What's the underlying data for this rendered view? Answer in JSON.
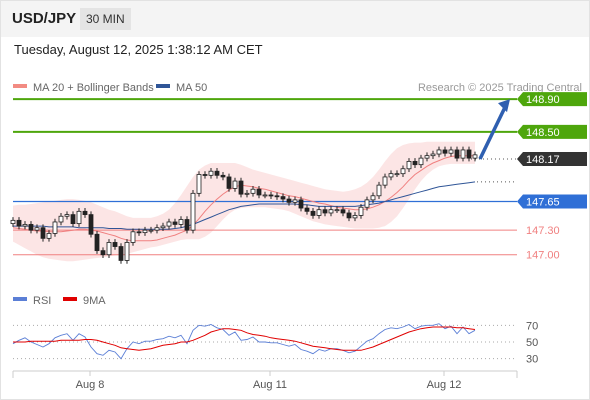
{
  "header": {
    "symbol": "USD/JPY",
    "timeframe": "30 MIN",
    "datetime": "Tuesday, August 12, 2025 1:38:12 AM CET"
  },
  "price_panel": {
    "legend": [
      {
        "label": "MA 20 + Bollinger Bands",
        "color": "#f28b82"
      },
      {
        "label": "MA 50",
        "color": "#2f5597"
      }
    ],
    "watermark": "Research © 2025 Trading Central"
  },
  "rsi_panel": {
    "legend": [
      {
        "label": "RSI",
        "color": "#5b7fd6"
      },
      {
        "label": "9MA",
        "color": "#e00000"
      }
    ]
  },
  "chart_data": [
    {
      "type": "candlestick",
      "ylim": [
        146.85,
        149.0
      ],
      "x_tick_labels": [
        "Aug 8",
        "Aug 11",
        "Aug 12"
      ],
      "x_tick_index": [
        13,
        43,
        72
      ],
      "n_bars": 78,
      "candles_open": [
        147.38,
        147.42,
        147.35,
        147.37,
        147.3,
        147.33,
        147.2,
        147.26,
        147.4,
        147.47,
        147.49,
        147.38,
        147.53,
        147.49,
        147.25,
        147.05,
        147.0,
        147.15,
        147.1,
        146.93,
        147.15,
        147.28,
        147.27,
        147.3,
        147.3,
        147.33,
        147.35,
        147.4,
        147.37,
        147.43,
        147.3,
        147.75,
        147.98,
        147.97,
        148.02,
        147.97,
        147.95,
        147.81,
        147.9,
        147.74,
        147.75,
        147.8,
        147.73,
        147.73,
        147.72,
        147.71,
        147.68,
        147.64,
        147.67,
        147.57,
        147.53,
        147.48,
        147.55,
        147.51,
        147.55,
        147.55,
        147.51,
        147.45,
        147.48,
        147.58,
        147.67,
        147.72,
        147.85,
        147.95,
        147.99,
        147.99,
        148.05,
        148.14,
        148.1,
        148.18,
        148.21,
        148.23,
        148.28,
        148.24,
        148.28,
        148.18,
        148.28,
        148.18
      ],
      "candles_close": [
        147.42,
        147.35,
        147.37,
        147.3,
        147.33,
        147.2,
        147.26,
        147.4,
        147.47,
        147.49,
        147.38,
        147.53,
        147.49,
        147.25,
        147.05,
        147.0,
        147.15,
        147.1,
        146.93,
        147.15,
        147.28,
        147.27,
        147.3,
        147.3,
        147.33,
        147.35,
        147.4,
        147.37,
        147.43,
        147.3,
        147.75,
        147.98,
        147.97,
        148.02,
        147.97,
        147.95,
        147.81,
        147.9,
        147.74,
        147.75,
        147.8,
        147.73,
        147.73,
        147.72,
        147.71,
        147.68,
        147.64,
        147.67,
        147.57,
        147.53,
        147.48,
        147.55,
        147.51,
        147.55,
        147.55,
        147.51,
        147.45,
        147.48,
        147.58,
        147.67,
        147.72,
        147.85,
        147.95,
        147.99,
        147.99,
        148.05,
        148.14,
        148.1,
        148.18,
        148.21,
        148.23,
        148.28,
        148.24,
        148.28,
        148.18,
        148.28,
        148.18,
        148.22
      ],
      "candles_high": [
        147.46,
        147.46,
        147.41,
        147.41,
        147.37,
        147.37,
        147.3,
        147.44,
        147.51,
        147.53,
        147.53,
        147.57,
        147.57,
        147.53,
        147.29,
        147.09,
        147.19,
        147.19,
        147.14,
        147.19,
        147.32,
        147.32,
        147.34,
        147.34,
        147.37,
        147.39,
        147.44,
        147.44,
        147.47,
        147.47,
        147.79,
        148.02,
        148.02,
        148.06,
        148.06,
        148.01,
        147.99,
        147.94,
        147.94,
        147.79,
        147.84,
        147.84,
        147.77,
        147.77,
        147.76,
        147.75,
        147.72,
        147.71,
        147.71,
        147.61,
        147.57,
        147.59,
        147.59,
        147.59,
        147.59,
        147.59,
        147.55,
        147.52,
        147.62,
        147.71,
        147.76,
        147.89,
        147.99,
        148.03,
        148.03,
        148.09,
        148.18,
        148.18,
        148.22,
        148.25,
        148.27,
        148.32,
        148.32,
        148.32,
        148.32,
        148.32,
        148.32,
        148.26
      ],
      "candles_low": [
        147.34,
        147.31,
        147.31,
        147.26,
        147.26,
        147.16,
        147.16,
        147.22,
        147.36,
        147.43,
        147.34,
        147.34,
        147.45,
        147.21,
        147.01,
        146.96,
        146.96,
        147.06,
        146.89,
        146.89,
        147.11,
        147.23,
        147.23,
        147.26,
        147.26,
        147.29,
        147.31,
        147.33,
        147.33,
        147.26,
        147.26,
        147.71,
        147.93,
        147.93,
        147.93,
        147.91,
        147.77,
        147.77,
        147.7,
        147.7,
        147.71,
        147.69,
        147.69,
        147.68,
        147.67,
        147.64,
        147.6,
        147.6,
        147.53,
        147.49,
        147.44,
        147.44,
        147.47,
        147.47,
        147.51,
        147.47,
        147.41,
        147.41,
        147.44,
        147.54,
        147.63,
        147.68,
        147.81,
        147.91,
        147.95,
        147.95,
        148.01,
        148.06,
        148.06,
        148.14,
        148.17,
        148.19,
        148.2,
        148.2,
        148.14,
        148.14,
        148.14,
        148.14
      ],
      "ma20": [
        147.33,
        147.32,
        147.31,
        147.3,
        147.29,
        147.29,
        147.28,
        147.28,
        147.28,
        147.29,
        147.3,
        147.31,
        147.31,
        147.3,
        147.29,
        147.27,
        147.25,
        147.23,
        147.2,
        147.18,
        147.17,
        147.17,
        147.17,
        147.17,
        147.18,
        147.2,
        147.22,
        147.24,
        147.27,
        147.3,
        147.36,
        147.44,
        147.53,
        147.61,
        147.68,
        147.74,
        147.79,
        147.83,
        147.85,
        147.84,
        147.83,
        147.81,
        147.8,
        147.78,
        147.76,
        147.74,
        147.72,
        147.71,
        147.69,
        147.67,
        147.65,
        147.63,
        147.62,
        147.6,
        147.58,
        147.57,
        147.56,
        147.55,
        147.55,
        147.56,
        147.58,
        147.61,
        147.65,
        147.7,
        147.76,
        147.83,
        147.91,
        147.98,
        148.03,
        148.08,
        148.12,
        148.15,
        148.18,
        148.2,
        148.21,
        148.21,
        148.21,
        148.21
      ],
      "ma50": [
        147.35,
        147.35,
        147.35,
        147.35,
        147.35,
        147.35,
        147.34,
        147.34,
        147.34,
        147.34,
        147.34,
        147.33,
        147.33,
        147.33,
        147.33,
        147.33,
        147.32,
        147.32,
        147.32,
        147.31,
        147.31,
        147.31,
        147.31,
        147.31,
        147.31,
        147.31,
        147.31,
        147.32,
        147.33,
        147.35,
        147.37,
        147.4,
        147.43,
        147.46,
        147.49,
        147.52,
        147.55,
        147.57,
        147.59,
        147.6,
        147.61,
        147.62,
        147.62,
        147.62,
        147.62,
        147.62,
        147.62,
        147.62,
        147.61,
        147.61,
        147.6,
        147.59,
        147.59,
        147.59,
        147.59,
        147.59,
        147.59,
        147.59,
        147.6,
        147.61,
        147.62,
        147.63,
        147.65,
        147.67,
        147.69,
        147.71,
        147.73,
        147.75,
        147.77,
        147.79,
        147.81,
        147.83,
        147.84,
        147.85,
        147.86,
        147.87,
        147.88,
        147.89
      ],
      "bb_upper": [
        147.6,
        147.61,
        147.61,
        147.62,
        147.63,
        147.64,
        147.65,
        147.66,
        147.67,
        147.68,
        147.68,
        147.67,
        147.66,
        147.64,
        147.61,
        147.58,
        147.55,
        147.53,
        147.5,
        147.47,
        147.45,
        147.45,
        147.45,
        147.45,
        147.47,
        147.5,
        147.55,
        147.63,
        147.73,
        147.84,
        147.95,
        148.04,
        148.09,
        148.12,
        148.12,
        148.12,
        148.12,
        148.12,
        148.1,
        148.07,
        148.04,
        148.02,
        148.0,
        147.98,
        147.96,
        147.94,
        147.92,
        147.9,
        147.88,
        147.86,
        147.84,
        147.82,
        147.8,
        147.79,
        147.78,
        147.77,
        147.78,
        147.8,
        147.83,
        147.88,
        147.95,
        148.04,
        148.14,
        148.23,
        148.3,
        148.34,
        148.36,
        148.37,
        148.37,
        148.38,
        148.38,
        148.38,
        148.38,
        148.38,
        148.38,
        148.38,
        148.38,
        148.38
      ],
      "bb_lower": [
        147.16,
        147.12,
        147.08,
        147.04,
        147.0,
        146.97,
        146.95,
        146.94,
        146.93,
        146.92,
        146.92,
        146.93,
        146.94,
        146.95,
        146.96,
        146.97,
        146.98,
        146.99,
        147.0,
        147.01,
        147.03,
        147.05,
        147.07,
        147.09,
        147.1,
        147.12,
        147.14,
        147.16,
        147.18,
        147.19,
        147.19,
        147.19,
        147.22,
        147.27,
        147.35,
        147.43,
        147.5,
        147.55,
        147.57,
        147.58,
        147.58,
        147.58,
        147.58,
        147.57,
        147.56,
        147.55,
        147.53,
        147.5,
        147.47,
        147.44,
        147.41,
        147.39,
        147.37,
        147.36,
        147.35,
        147.34,
        147.33,
        147.32,
        147.32,
        147.32,
        147.32,
        147.33,
        147.35,
        147.4,
        147.47,
        147.57,
        147.68,
        147.8,
        147.9,
        147.98,
        148.04,
        148.08,
        148.1,
        148.11,
        148.11,
        148.11,
        148.11,
        148.11
      ],
      "levels": [
        {
          "label": "148.90",
          "value": 148.9,
          "color": "#4ea60c"
        },
        {
          "label": "148.50",
          "value": 148.5,
          "color": "#4ea60c"
        },
        {
          "label": "148.17",
          "value": 148.17,
          "color": "#333333"
        },
        {
          "label": "147.65",
          "value": 147.65,
          "color": "#2f6fd6"
        },
        {
          "label": "147.30",
          "value": 147.3,
          "color": "#f08080"
        },
        {
          "label": "147.00",
          "value": 147.0,
          "color": "#f08080"
        }
      ],
      "forecast_arrow": {
        "from_price": 148.17,
        "to_price": 148.9,
        "color": "#2f5fb0"
      }
    },
    {
      "type": "line",
      "name": "RSI",
      "ylim": [
        20,
        80
      ],
      "y_tick_labels": [
        "70",
        "50",
        "30"
      ],
      "y_ticks": [
        70,
        50,
        30
      ],
      "rsi": [
        48,
        52,
        55,
        50,
        47,
        44,
        48,
        55,
        58,
        60,
        52,
        60,
        56,
        44,
        36,
        34,
        40,
        38,
        30,
        42,
        50,
        48,
        51,
        51,
        53,
        54,
        57,
        55,
        58,
        48,
        64,
        70,
        69,
        71,
        67,
        65,
        58,
        62,
        52,
        53,
        56,
        50,
        50,
        49,
        49,
        47,
        45,
        47,
        41,
        39,
        36,
        41,
        39,
        42,
        42,
        40,
        37,
        39,
        45,
        51,
        54,
        60,
        65,
        67,
        66,
        68,
        71,
        66,
        69,
        70,
        70,
        72,
        66,
        69,
        60,
        68,
        60,
        64
      ],
      "ma9": [
        50,
        50,
        50,
        51,
        51,
        51,
        51,
        51,
        52,
        52,
        52,
        52,
        53,
        53,
        52,
        50,
        48,
        46,
        43,
        42,
        41,
        40,
        41,
        42,
        44,
        46,
        47,
        48,
        50,
        50,
        52,
        55,
        58,
        62,
        64,
        66,
        66,
        65,
        64,
        61,
        59,
        58,
        57,
        55,
        54,
        53,
        52,
        51,
        49,
        47,
        45,
        44,
        43,
        42,
        41,
        40,
        40,
        40,
        40,
        42,
        44,
        47,
        50,
        53,
        56,
        59,
        62,
        64,
        66,
        67,
        68,
        68,
        68,
        68,
        67,
        67,
        66,
        65
      ]
    }
  ]
}
